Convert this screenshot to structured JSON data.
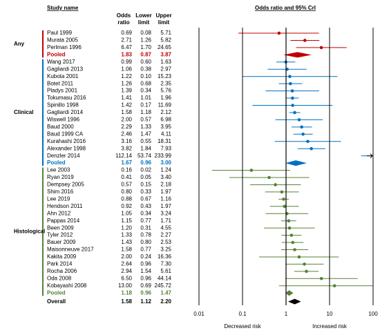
{
  "chart_data": {
    "type": "forest",
    "title": "Odds ratio and 95% CrI",
    "columns": [
      "Study name",
      "Odds ratio",
      "Lower limit",
      "Upper limit"
    ],
    "log_scale": true,
    "xlim": [
      0.01,
      100
    ],
    "xticks": [
      0.01,
      0.1,
      1,
      10,
      100
    ],
    "x_labels": [
      "Decreased risk",
      "Increased risk"
    ],
    "groups": [
      {
        "name": "Any",
        "color": "#c00000",
        "studies": [
          {
            "name": "Paul 1999",
            "values": [
              0.69,
              0.08,
              5.71
            ],
            "value_labels": [
              "0.69",
              "0.08",
              "5.71"
            ]
          },
          {
            "name": "Murata 2005",
            "values": [
              2.71,
              1.26,
              5.82
            ],
            "value_labels": [
              "2.71",
              "1.26",
              "5.82"
            ]
          },
          {
            "name": "Perlman 1996",
            "values": [
              6.47,
              1.7,
              24.65
            ],
            "value_labels": [
              "6.47",
              "1.70",
              "24.65"
            ]
          }
        ],
        "pooled": {
          "name": "Pooled",
          "values": [
            1.83,
            0.87,
            3.87
          ],
          "value_labels": [
            "1.83",
            "0.87",
            "3.87"
          ]
        }
      },
      {
        "name": "Clinical",
        "color": "#0070c0",
        "studies": [
          {
            "name": "Wang 2017",
            "values": [
              0.99,
              0.6,
              1.63
            ],
            "value_labels": [
              "0.99",
              "0.60",
              "1.63"
            ]
          },
          {
            "name": "Gagliardi 2013",
            "values": [
              1.06,
              0.38,
              2.97
            ],
            "value_labels": [
              "1.06",
              "0.38",
              "2.97"
            ]
          },
          {
            "name": "Kubota 2001",
            "values": [
              1.22,
              0.1,
              15.23
            ],
            "value_labels": [
              "1.22",
              "0.10",
              "15.23"
            ]
          },
          {
            "name": "Botet 2011",
            "values": [
              1.26,
              0.68,
              2.35
            ],
            "value_labels": [
              "1.26",
              "0.68",
              "2.35"
            ]
          },
          {
            "name": "Pladys 2001",
            "values": [
              1.39,
              0.34,
              5.76
            ],
            "value_labels": [
              "1.39",
              "0.34",
              "5.76"
            ]
          },
          {
            "name": "Tokumasu 2016",
            "values": [
              1.41,
              1.01,
              1.96
            ],
            "value_labels": [
              "1.41",
              "1.01",
              "1.96"
            ]
          },
          {
            "name": "Spinillo 1998",
            "values": [
              1.42,
              0.17,
              11.69
            ],
            "value_labels": [
              "1.42",
              "0.17",
              "11.69"
            ]
          },
          {
            "name": "Gagliardi 2014",
            "values": [
              1.58,
              1.18,
              2.12
            ],
            "value_labels": [
              "1.58",
              "1.18",
              "2.12"
            ]
          },
          {
            "name": "Wiswell 1996",
            "values": [
              2.0,
              0.57,
              6.98
            ],
            "value_labels": [
              "2.00",
              "0.57",
              "6.98"
            ]
          },
          {
            "name": "Baud 2000",
            "values": [
              2.29,
              1.33,
              3.95
            ],
            "value_labels": [
              "2.29",
              "1.33",
              "3.95"
            ]
          },
          {
            "name": "Baud 1999 CA",
            "values": [
              2.46,
              1.47,
              4.11
            ],
            "value_labels": [
              "2.46",
              "1.47",
              "4.11"
            ]
          },
          {
            "name": "Kurahashi 2016",
            "values": [
              3.16,
              0.55,
              18.31
            ],
            "value_labels": [
              "3.16",
              "0.55",
              "18.31"
            ]
          },
          {
            "name": "Alexander 1998",
            "values": [
              3.82,
              1.84,
              7.93
            ],
            "value_labels": [
              "3.82",
              "1.84",
              "7.93"
            ]
          },
          {
            "name": "Denzler 2014",
            "values": [
              112.14,
              53.74,
              233.99
            ],
            "value_labels": [
              "112.14",
              "53.74",
              "233.99"
            ]
          }
        ],
        "pooled": {
          "name": "Pooled",
          "values": [
            1.67,
            0.96,
            3.0
          ],
          "value_labels": [
            "1.67",
            "0.96",
            "3.00"
          ]
        }
      },
      {
        "name": "Histological",
        "color": "#548235",
        "studies": [
          {
            "name": "Lee 2003",
            "values": [
              0.16,
              0.02,
              1.24
            ],
            "value_labels": [
              "0.16",
              "0.02",
              "1.24"
            ]
          },
          {
            "name": "Ryan 2019",
            "values": [
              0.41,
              0.05,
              3.4
            ],
            "value_labels": [
              "0.41",
              "0.05",
              "3.40"
            ]
          },
          {
            "name": "Dempsey 2005",
            "values": [
              0.57,
              0.15,
              2.18
            ],
            "value_labels": [
              "0.57",
              "0.15",
              "2.18"
            ]
          },
          {
            "name": "Shim 2016",
            "values": [
              0.8,
              0.33,
              1.97
            ],
            "value_labels": [
              "0.80",
              "0.33",
              "1.97"
            ]
          },
          {
            "name": "Lee 2019",
            "values": [
              0.88,
              0.67,
              1.16
            ],
            "value_labels": [
              "0.88",
              "0.67",
              "1.16"
            ]
          },
          {
            "name": "Hendson 2011",
            "values": [
              0.92,
              0.43,
              1.97
            ],
            "value_labels": [
              "0.92",
              "0.43",
              "1.97"
            ]
          },
          {
            "name": "Ahn 2012",
            "values": [
              1.05,
              0.34,
              3.24
            ],
            "value_labels": [
              "1.05",
              "0.34",
              "3.24"
            ]
          },
          {
            "name": "Pappas 2014",
            "values": [
              1.15,
              0.77,
              1.71
            ],
            "value_labels": [
              "1.15",
              "0.77",
              "1.71"
            ]
          },
          {
            "name": "Been 2009",
            "values": [
              1.2,
              0.31,
              4.55
            ],
            "value_labels": [
              "1.20",
              "0.31",
              "4.55"
            ]
          },
          {
            "name": "Tyler 2012",
            "values": [
              1.33,
              0.78,
              2.27
            ],
            "value_labels": [
              "1.33",
              "0.78",
              "2.27"
            ]
          },
          {
            "name": "Bauer 2009",
            "values": [
              1.43,
              0.8,
              2.53
            ],
            "value_labels": [
              "1.43",
              "0.80",
              "2.53"
            ]
          },
          {
            "name": "Maisonneuve 2017",
            "values": [
              1.58,
              0.77,
              3.25
            ],
            "value_labels": [
              "1.58",
              "0.77",
              "3.25"
            ]
          },
          {
            "name": "Kakita 2009",
            "values": [
              2.0,
              0.24,
              16.36
            ],
            "value_labels": [
              "2.00",
              "0.24",
              "16.36"
            ]
          },
          {
            "name": "Park 2014",
            "values": [
              2.64,
              0.96,
              7.3
            ],
            "value_labels": [
              "2.64",
              "0.96",
              "7.30"
            ]
          },
          {
            "name": "Rocha 2006",
            "values": [
              2.94,
              1.54,
              5.61
            ],
            "value_labels": [
              "2.94",
              "1.54",
              "5.61"
            ]
          },
          {
            "name": "Oda 2008",
            "values": [
              6.5,
              0.96,
              44.14
            ],
            "value_labels": [
              "6.50",
              "0.96",
              "44.14"
            ]
          },
          {
            "name": "Kobayashi 2008",
            "values": [
              13.0,
              0.69,
              245.72
            ],
            "value_labels": [
              "13.00",
              "0.69",
              "245.72"
            ]
          }
        ],
        "pooled": {
          "name": "Pooled",
          "values": [
            1.18,
            0.96,
            1.47
          ],
          "value_labels": [
            "1.18",
            "0.96",
            "1.47"
          ]
        }
      }
    ],
    "overall": {
      "name": "Overall",
      "color": "#000000",
      "values": [
        1.58,
        1.12,
        2.2
      ],
      "value_labels": [
        "1.58",
        "1.12",
        "2.20"
      ]
    }
  }
}
